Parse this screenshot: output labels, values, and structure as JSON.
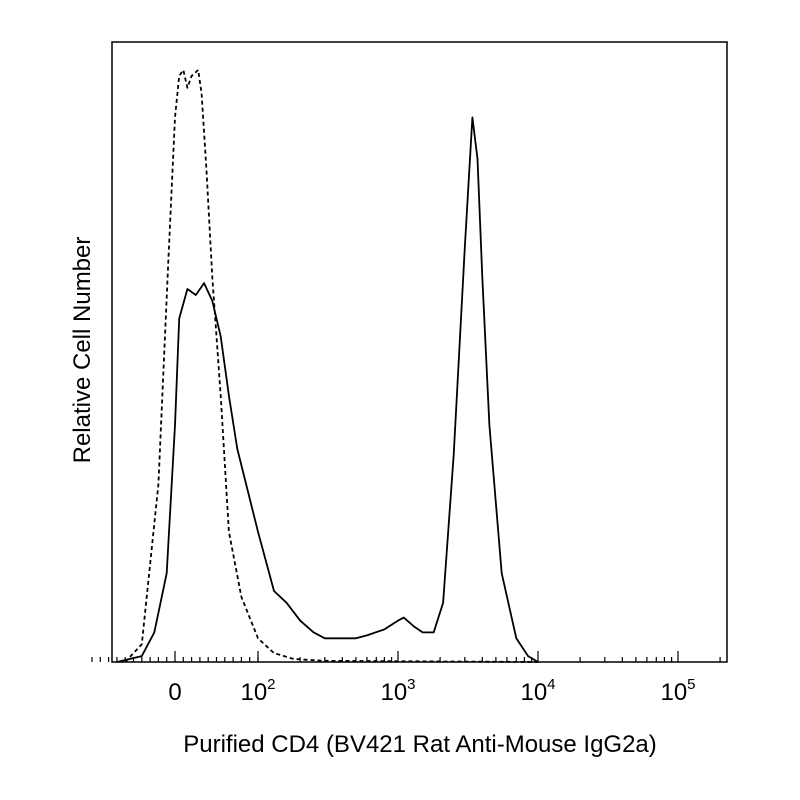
{
  "chart_data": {
    "type": "line",
    "title": "",
    "xlabel": "Purified CD4 (BV421 Rat Anti-Mouse IgG2a)",
    "ylabel": "Relative Cell Number",
    "x_scale": "biexponential",
    "xlim": [
      -120,
      250000
    ],
    "ylim": [
      0,
      100
    ],
    "x_ticks": [
      {
        "value": 0,
        "base": "0",
        "exp": ""
      },
      {
        "value": 100,
        "base": "10",
        "exp": "2"
      },
      {
        "value": 1000,
        "base": "10",
        "exp": "3"
      },
      {
        "value": 10000,
        "base": "10",
        "exp": "4"
      },
      {
        "value": 100000,
        "base": "10",
        "exp": "5"
      }
    ],
    "grid": false,
    "legend": "none",
    "series": [
      {
        "style": "solid",
        "color": "#000000",
        "points": [
          [
            -70,
            0
          ],
          [
            -40,
            1
          ],
          [
            -25,
            5
          ],
          [
            -10,
            15
          ],
          [
            0,
            40
          ],
          [
            5,
            58
          ],
          [
            15,
            63
          ],
          [
            25,
            62
          ],
          [
            35,
            64
          ],
          [
            45,
            61
          ],
          [
            55,
            55
          ],
          [
            65,
            45
          ],
          [
            75,
            36
          ],
          [
            100,
            22
          ],
          [
            130,
            12
          ],
          [
            160,
            10
          ],
          [
            200,
            7
          ],
          [
            250,
            5
          ],
          [
            300,
            4
          ],
          [
            400,
            4
          ],
          [
            500,
            4
          ],
          [
            600,
            4.5
          ],
          [
            800,
            5.5
          ],
          [
            1000,
            7
          ],
          [
            1100,
            7.5
          ],
          [
            1300,
            6
          ],
          [
            1500,
            5
          ],
          [
            1800,
            5
          ],
          [
            2100,
            10
          ],
          [
            2500,
            35
          ],
          [
            3000,
            70
          ],
          [
            3400,
            92
          ],
          [
            3700,
            85
          ],
          [
            4000,
            65
          ],
          [
            4500,
            40
          ],
          [
            5500,
            15
          ],
          [
            7000,
            4
          ],
          [
            8500,
            1
          ],
          [
            10000,
            0
          ]
        ]
      },
      {
        "style": "dashed",
        "color": "#000000",
        "points": [
          [
            -60,
            0
          ],
          [
            -40,
            3
          ],
          [
            -20,
            30
          ],
          [
            -8,
            68
          ],
          [
            0,
            92
          ],
          [
            5,
            99
          ],
          [
            10,
            100
          ],
          [
            15,
            97
          ],
          [
            20,
            99
          ],
          [
            28,
            100
          ],
          [
            32,
            96
          ],
          [
            38,
            83
          ],
          [
            45,
            65
          ],
          [
            55,
            45
          ],
          [
            65,
            22
          ],
          [
            80,
            11
          ],
          [
            100,
            4
          ],
          [
            130,
            1.5
          ],
          [
            180,
            0.5
          ],
          [
            300,
            0.2
          ],
          [
            10000,
            0
          ]
        ]
      }
    ]
  }
}
